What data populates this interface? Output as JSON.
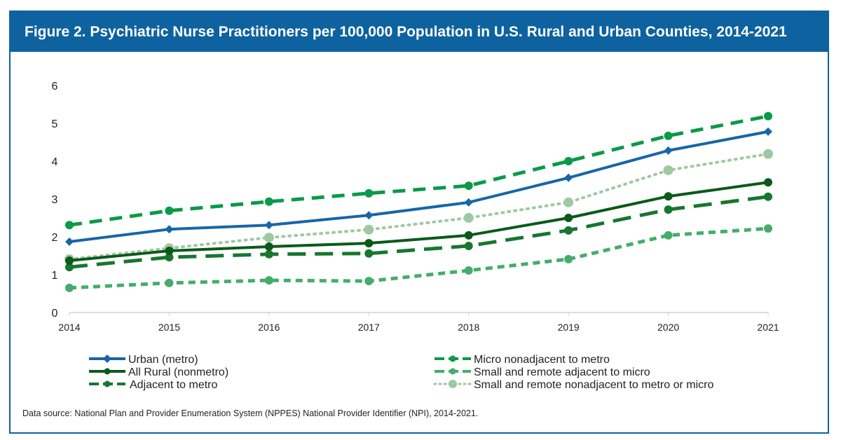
{
  "chart_data": {
    "type": "line",
    "title": "Figure 2. Psychiatric Nurse Practitioners per 100,000 Population in U.S. Rural and Urban Counties, 2014-2021",
    "xlabel": "",
    "ylabel": "",
    "x": [
      "2014",
      "2015",
      "2016",
      "2017",
      "2018",
      "2019",
      "2020",
      "2021"
    ],
    "ylim": [
      0,
      6
    ],
    "yticks": [
      "0",
      "1",
      "2",
      "3",
      "4",
      "5",
      "6"
    ],
    "grid": false,
    "legend_position": "bottom",
    "series": [
      {
        "name": "Urban (metro)",
        "color": "#1766a8",
        "style": "solid",
        "marker": "diamond",
        "values": [
          1.87,
          2.2,
          2.31,
          2.57,
          2.91,
          3.56,
          4.28,
          4.78
        ]
      },
      {
        "name": "All Rural (nonmetro)",
        "color": "#0b5a1a",
        "style": "solid",
        "marker": "circle",
        "values": [
          1.37,
          1.63,
          1.74,
          1.83,
          2.04,
          2.5,
          3.07,
          3.44
        ]
      },
      {
        "name": "Adjacent to metro",
        "color": "#17762f",
        "style": "longdash",
        "marker": "circle",
        "values": [
          1.2,
          1.46,
          1.54,
          1.56,
          1.76,
          2.17,
          2.72,
          3.06
        ]
      },
      {
        "name": "Micro nonadjacent to metro",
        "color": "#0a9a48",
        "style": "dash",
        "marker": "circle",
        "values": [
          2.31,
          2.69,
          2.93,
          3.15,
          3.35,
          4.0,
          4.67,
          5.19
        ]
      },
      {
        "name": "Small and remote adjacent to micro",
        "color": "#44ad6a",
        "style": "shortdash",
        "marker": "circle",
        "values": [
          0.65,
          0.78,
          0.85,
          0.83,
          1.11,
          1.41,
          2.04,
          2.22
        ]
      },
      {
        "name": "Small and remote nonadjacent to metro or micro",
        "color": "#9ec9a0",
        "style": "dot",
        "marker": "circle",
        "values": [
          1.41,
          1.7,
          1.98,
          2.19,
          2.5,
          2.91,
          3.76,
          4.19
        ]
      }
    ]
  },
  "source": "Data source: National Plan and Provider Enumeration System (NPPES) National Provider Identifier (NPI), 2014-2021."
}
